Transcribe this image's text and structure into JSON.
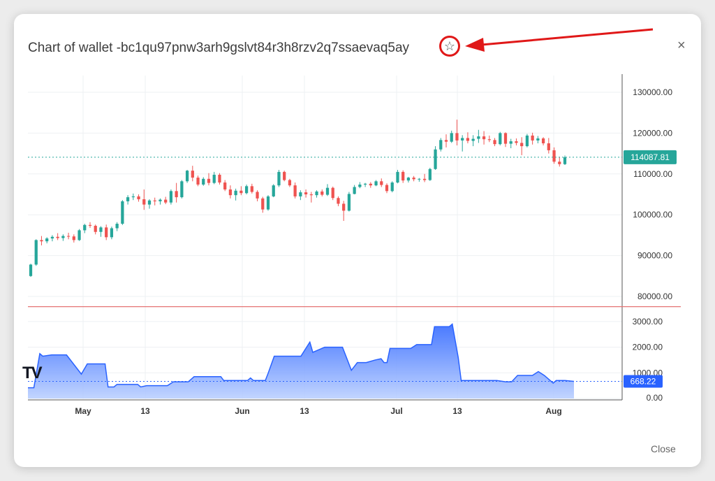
{
  "dialog": {
    "title": "Chart of wallet -bc1qu97pnw3arh9gslvt84r3h8rzv2q7ssaevaq5ay",
    "close_label": "Close",
    "close_icon": "×",
    "star_icon": "☆",
    "annotation_arrow_color": "#e01818"
  },
  "logo_text": "TV",
  "chart_data": [
    {
      "type": "candlestick",
      "title": "",
      "y_ticks": [
        "130000.00",
        "120000.00",
        "110000.00",
        "100000.00",
        "90000.00",
        "80000.00"
      ],
      "ylim": [
        77500,
        133000
      ],
      "last_price_label": "114087.81",
      "last_price": 114087.81,
      "reference_line": 77500,
      "colors": {
        "up": "#26a69a",
        "down": "#ef5350",
        "badge": "#26a69a",
        "ref_line": "#e57373"
      },
      "candles_ohlc": [
        [
          85000,
          88000,
          84800,
          87800
        ],
        [
          87800,
          94000,
          87500,
          93800
        ],
        [
          93800,
          94800,
          92500,
          93500
        ],
        [
          93500,
          94500,
          93000,
          94200
        ],
        [
          94200,
          95000,
          93500,
          94600
        ],
        [
          94600,
          95500,
          93800,
          94300
        ],
        [
          94300,
          95200,
          93600,
          94800
        ],
        [
          94800,
          95600,
          94000,
          94700
        ],
        [
          94700,
          95200,
          93200,
          93800
        ],
        [
          93800,
          96500,
          93600,
          96200
        ],
        [
          96200,
          97800,
          95500,
          97500
        ],
        [
          97500,
          98200,
          96800,
          97300
        ],
        [
          97300,
          97600,
          95200,
          95800
        ],
        [
          95800,
          97200,
          94600,
          96900
        ],
        [
          96900,
          97600,
          93800,
          94500
        ],
        [
          94500,
          97100,
          94000,
          96700
        ],
        [
          96700,
          98200,
          96000,
          97800
        ],
        [
          97800,
          103600,
          97500,
          103300
        ],
        [
          103300,
          104800,
          102500,
          104300
        ],
        [
          104300,
          105200,
          103600,
          104500
        ],
        [
          104500,
          105000,
          103200,
          103800
        ],
        [
          103800,
          106200,
          101200,
          102500
        ],
        [
          102500,
          103800,
          101500,
          103500
        ],
        [
          103500,
          104200,
          102300,
          103300
        ],
        [
          103300,
          104000,
          102500,
          103700
        ],
        [
          103700,
          104400,
          102600,
          103000
        ],
        [
          103000,
          106200,
          102500,
          105800
        ],
        [
          105800,
          107800,
          103000,
          104300
        ],
        [
          104300,
          108500,
          104000,
          108200
        ],
        [
          108200,
          111000,
          107800,
          110800
        ],
        [
          110800,
          112000,
          108200,
          109100
        ],
        [
          109100,
          109600,
          107000,
          107400
        ],
        [
          107400,
          109200,
          107100,
          108800
        ],
        [
          108800,
          110200,
          107200,
          107800
        ],
        [
          107800,
          110500,
          107500,
          109800
        ],
        [
          109800,
          110200,
          107400,
          107900
        ],
        [
          107900,
          108500,
          105800,
          106200
        ],
        [
          106200,
          107200,
          104000,
          104800
        ],
        [
          104800,
          106400,
          103500,
          105900
        ],
        [
          105900,
          107000,
          104800,
          105300
        ],
        [
          105300,
          107400,
          105000,
          107000
        ],
        [
          107000,
          107600,
          105200,
          105600
        ],
        [
          105600,
          106000,
          103300,
          104000
        ],
        [
          104000,
          104400,
          100500,
          101300
        ],
        [
          101300,
          104800,
          101000,
          104500
        ],
        [
          104500,
          107500,
          104300,
          107200
        ],
        [
          107200,
          111000,
          106800,
          110500
        ],
        [
          110500,
          110800,
          108200,
          108500
        ],
        [
          108500,
          108800,
          106800,
          107200
        ],
        [
          107200,
          107900,
          104000,
          104500
        ],
        [
          104500,
          106000,
          103600,
          105500
        ],
        [
          105500,
          106200,
          104200,
          105000
        ],
        [
          105000,
          105600,
          103000,
          104800
        ],
        [
          104800,
          106000,
          104200,
          105700
        ],
        [
          105700,
          106200,
          104500,
          104900
        ],
        [
          104900,
          107500,
          104600,
          106600
        ],
        [
          106600,
          106900,
          103600,
          104100
        ],
        [
          104100,
          104500,
          102100,
          102700
        ],
        [
          102700,
          103400,
          98500,
          101000
        ],
        [
          101000,
          105600,
          100800,
          105100
        ],
        [
          105100,
          107300,
          105000,
          106800
        ],
        [
          106800,
          108000,
          106500,
          107400
        ],
        [
          107400,
          107800,
          106800,
          107600
        ],
        [
          107600,
          108000,
          106600,
          107200
        ],
        [
          107200,
          108500,
          107000,
          108200
        ],
        [
          108200,
          108900,
          106800,
          107300
        ],
        [
          107300,
          107700,
          105300,
          105800
        ],
        [
          105800,
          108200,
          105500,
          107900
        ],
        [
          107900,
          111000,
          107700,
          110500
        ],
        [
          110500,
          110900,
          107800,
          108400
        ],
        [
          108400,
          109300,
          107900,
          109100
        ],
        [
          109100,
          109500,
          108200,
          108700
        ],
        [
          108700,
          109000,
          108100,
          108800
        ],
        [
          108800,
          110000,
          108000,
          108500
        ],
        [
          108500,
          111500,
          108300,
          111200
        ],
        [
          111200,
          116800,
          111000,
          116000
        ],
        [
          116000,
          118800,
          115500,
          118300
        ],
        [
          118300,
          119700,
          116500,
          117900
        ],
        [
          117900,
          120600,
          117600,
          120000
        ],
        [
          120000,
          123300,
          117000,
          118200
        ],
        [
          118200,
          119500,
          115500,
          118800
        ],
        [
          118800,
          120200,
          117500,
          118100
        ],
        [
          118100,
          119500,
          116800,
          118600
        ],
        [
          118600,
          120800,
          117600,
          119200
        ],
        [
          119200,
          120500,
          117200,
          118500
        ],
        [
          118500,
          119400,
          117800,
          118300
        ],
        [
          118300,
          118800,
          116800,
          117300
        ],
        [
          117300,
          120300,
          117000,
          120000
        ],
        [
          120000,
          120200,
          116600,
          117400
        ],
        [
          117400,
          118600,
          116300,
          118000
        ],
        [
          118000,
          118700,
          117000,
          117600
        ],
        [
          117600,
          119000,
          114600,
          116800
        ],
        [
          116800,
          119800,
          116500,
          119400
        ],
        [
          119400,
          120100,
          117200,
          118200
        ],
        [
          118200,
          119300,
          117500,
          118700
        ],
        [
          118700,
          119000,
          117000,
          117500
        ],
        [
          117500,
          118800,
          115000,
          115800
        ],
        [
          115800,
          116500,
          112500,
          113000
        ],
        [
          113000,
          114200,
          111800,
          112400
        ],
        [
          112400,
          114500,
          112200,
          114087.81
        ]
      ]
    },
    {
      "type": "area",
      "title": "",
      "y_ticks": [
        "3000.00",
        "2000.00",
        "1000.00",
        "0.00"
      ],
      "ylim": [
        0,
        3000
      ],
      "last_value_label": "668.22",
      "last_value": 668.22,
      "x_tick_labels": [
        "May",
        "13",
        "Jun",
        "13",
        "Jul",
        "13",
        "Aug"
      ],
      "colors": {
        "line": "#2962ff",
        "fill_top": "#2962ff",
        "fill_bottom": "#bbd0ff",
        "badge": "#2962ff"
      },
      "points": [
        [
          0,
          420
        ],
        [
          2,
          420
        ],
        [
          4,
          1750
        ],
        [
          5,
          1650
        ],
        [
          8,
          1700
        ],
        [
          13,
          1700
        ],
        [
          15,
          1400
        ],
        [
          18,
          950
        ],
        [
          20,
          1350
        ],
        [
          26,
          1350
        ],
        [
          27,
          450
        ],
        [
          29,
          450
        ],
        [
          30,
          550
        ],
        [
          37,
          550
        ],
        [
          38,
          450
        ],
        [
          40,
          500
        ],
        [
          47,
          500
        ],
        [
          49,
          650
        ],
        [
          54,
          650
        ],
        [
          56,
          850
        ],
        [
          65,
          850
        ],
        [
          66,
          700
        ],
        [
          74,
          700
        ],
        [
          75,
          800
        ],
        [
          76,
          700
        ],
        [
          80,
          700
        ],
        [
          81,
          1000
        ],
        [
          83,
          1650
        ],
        [
          92,
          1650
        ],
        [
          95,
          2200
        ],
        [
          96,
          1800
        ],
        [
          100,
          2000
        ],
        [
          106,
          2000
        ],
        [
          109,
          1100
        ],
        [
          111,
          1400
        ],
        [
          114,
          1400
        ],
        [
          117,
          1500
        ],
        [
          119,
          1550
        ],
        [
          120,
          1400
        ],
        [
          121,
          1400
        ],
        [
          122,
          1950
        ],
        [
          129,
          1950
        ],
        [
          131,
          2100
        ],
        [
          136,
          2100
        ],
        [
          137,
          2800
        ],
        [
          142,
          2800
        ],
        [
          143,
          2900
        ],
        [
          145,
          1600
        ],
        [
          146,
          700
        ],
        [
          158,
          700
        ],
        [
          161,
          650
        ],
        [
          163,
          650
        ],
        [
          165,
          900
        ],
        [
          170,
          900
        ],
        [
          172,
          1050
        ],
        [
          174,
          900
        ],
        [
          177,
          600
        ],
        [
          178,
          700
        ],
        [
          181,
          700
        ],
        [
          184,
          668.22
        ]
      ]
    }
  ]
}
